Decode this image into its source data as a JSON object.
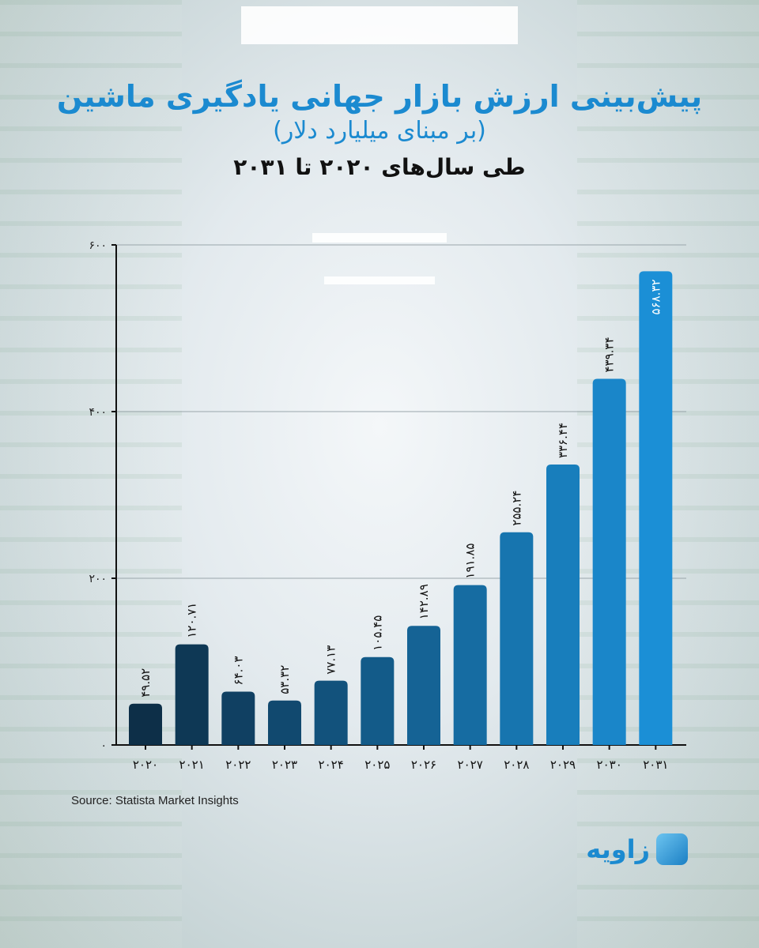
{
  "title": {
    "line1": "پیش‌بینی ارزش بازار جهانی یادگیری ماشین",
    "line2": "(بر مبنای میلیارد دلار)",
    "line3": "طی سال‌های ۲۰۲۰ تا ۲۰۳۱"
  },
  "source": "Source: Statista Market Insights",
  "logo": {
    "text": "زاویه"
  },
  "colors": {
    "dark": "#0d2f48",
    "light": "#1b8fd6",
    "title": "#1b8ad0"
  },
  "chart_data": {
    "type": "bar",
    "title": "پیش‌بینی ارزش بازار جهانی یادگیری ماشین",
    "ylabel": "میلیارد دلار",
    "xlabel": "",
    "ylim": [
      0,
      600
    ],
    "yticks": [
      0,
      200,
      400,
      600
    ],
    "ytick_labels": [
      "۰",
      "۲۰۰",
      "۴۰۰",
      "۶۰۰"
    ],
    "grid": true,
    "categories": [
      "۲۰۲۰",
      "۲۰۲۱",
      "۲۰۲۲",
      "۲۰۲۳",
      "۲۰۲۴",
      "۲۰۲۵",
      "۲۰۲۶",
      "۲۰۲۷",
      "۲۰۲۸",
      "۲۰۲۹",
      "۲۰۳۰",
      "۲۰۳۱"
    ],
    "values": [
      49.52,
      120.71,
      64.03,
      53.32,
      77.13,
      105.45,
      142.89,
      191.85,
      255.24,
      336.44,
      439.34,
      568.32
    ],
    "value_labels": [
      "۴۹.۵۲",
      "۱۲۰.۷۱",
      "۶۴.۰۳",
      "۵۳.۳۲",
      "۷۷.۱۳",
      "۱۰۵.۴۵",
      "۱۴۲.۸۹",
      "۱۹۱.۸۵",
      "۲۵۵.۲۴",
      "۳۳۶.۴۴",
      "۴۳۹.۳۴",
      "۵۶۸.۳۲"
    ]
  }
}
